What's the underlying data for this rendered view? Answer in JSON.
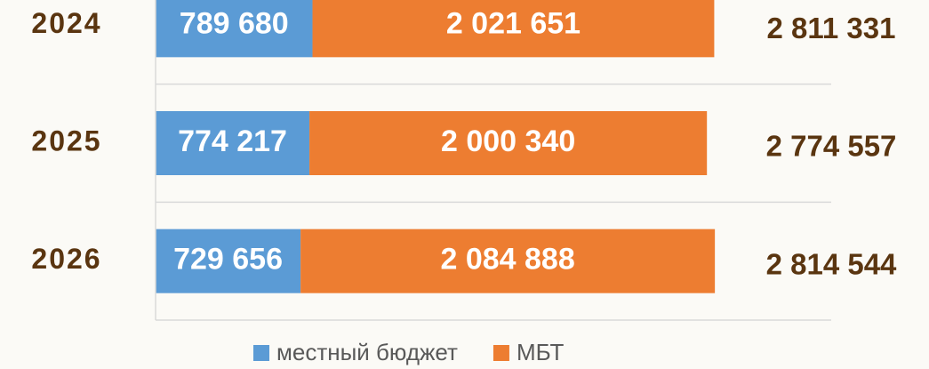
{
  "chart_data": {
    "type": "stacked-barh",
    "categories": [
      "2024",
      "2025",
      "2026"
    ],
    "series": [
      {
        "name": "местный бюджет",
        "color": "#5b9bd5",
        "values": [
          789680,
          774217,
          729656
        ],
        "value_labels": [
          "789 680",
          "774 217",
          "729 656"
        ]
      },
      {
        "name": "МБТ",
        "color": "#ed7d31",
        "values": [
          2021651,
          2000340,
          2084888
        ],
        "value_labels": [
          "2 021 651",
          "2 000 340",
          "2 084 888"
        ]
      }
    ],
    "totals": [
      2811331,
      2774557,
      2814544
    ],
    "total_labels": [
      "2 811 331",
      "2 774 557",
      "2 814 544"
    ],
    "xlim": [
      0,
      3400000
    ],
    "legend": "bottom"
  }
}
